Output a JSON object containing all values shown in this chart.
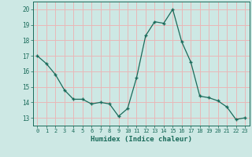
{
  "x": [
    0,
    1,
    2,
    3,
    4,
    5,
    6,
    7,
    8,
    9,
    10,
    11,
    12,
    13,
    14,
    15,
    16,
    17,
    18,
    19,
    20,
    21,
    22,
    23
  ],
  "y": [
    17.0,
    16.5,
    15.8,
    14.8,
    14.2,
    14.2,
    13.9,
    14.0,
    13.9,
    13.1,
    13.6,
    15.6,
    18.3,
    19.2,
    19.1,
    20.0,
    17.9,
    16.6,
    14.4,
    14.3,
    14.1,
    13.7,
    12.9,
    13.0
  ],
  "bg_color": "#cde8e4",
  "grid_color": "#e8b8b8",
  "line_color": "#1a6b5a",
  "marker_color": "#1a6b5a",
  "xlabel": "Humidex (Indice chaleur)",
  "ylim": [
    12.5,
    20.5
  ],
  "xlim": [
    -0.5,
    23.5
  ],
  "yticks": [
    13,
    14,
    15,
    16,
    17,
    18,
    19,
    20
  ],
  "xticks": [
    0,
    1,
    2,
    3,
    4,
    5,
    6,
    7,
    8,
    9,
    10,
    11,
    12,
    13,
    14,
    15,
    16,
    17,
    18,
    19,
    20,
    21,
    22,
    23
  ]
}
